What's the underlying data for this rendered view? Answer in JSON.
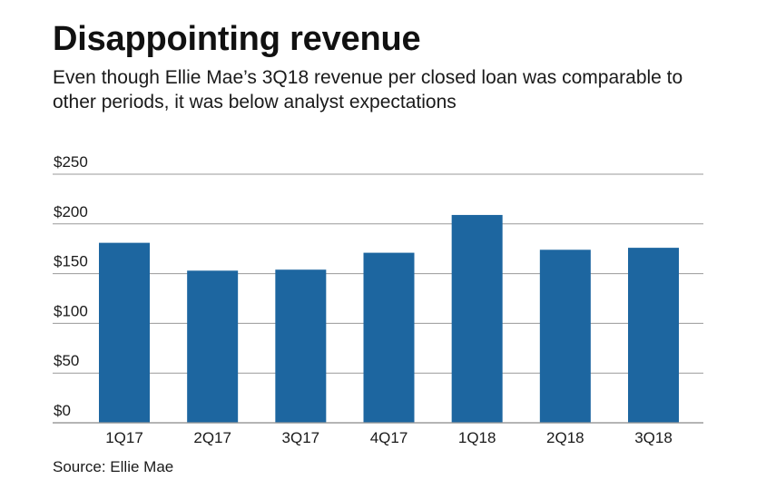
{
  "title": "Disappointing revenue",
  "subtitle": "Even though Ellie Mae’s 3Q18 revenue per closed loan was comparable to other periods, it was below analyst expectations",
  "source": "Source: Ellie Mae",
  "colors": {
    "bar": "#1d66a0",
    "grid": "#999999",
    "text": "#1a1a1a"
  },
  "chart_data": {
    "type": "bar",
    "title": "Disappointing revenue",
    "xlabel": "",
    "ylabel": "",
    "categories": [
      "1Q17",
      "2Q17",
      "3Q17",
      "4Q17",
      "1Q18",
      "2Q18",
      "3Q18"
    ],
    "values": [
      181,
      153,
      154,
      171,
      209,
      174,
      176
    ],
    "ylim": [
      0,
      250
    ],
    "yticks": [
      0,
      50,
      100,
      150,
      200,
      250
    ],
    "ytick_labels": [
      "$0",
      "$50",
      "$100",
      "$150",
      "$200",
      "$250"
    ],
    "grid": true,
    "legend": "none"
  }
}
